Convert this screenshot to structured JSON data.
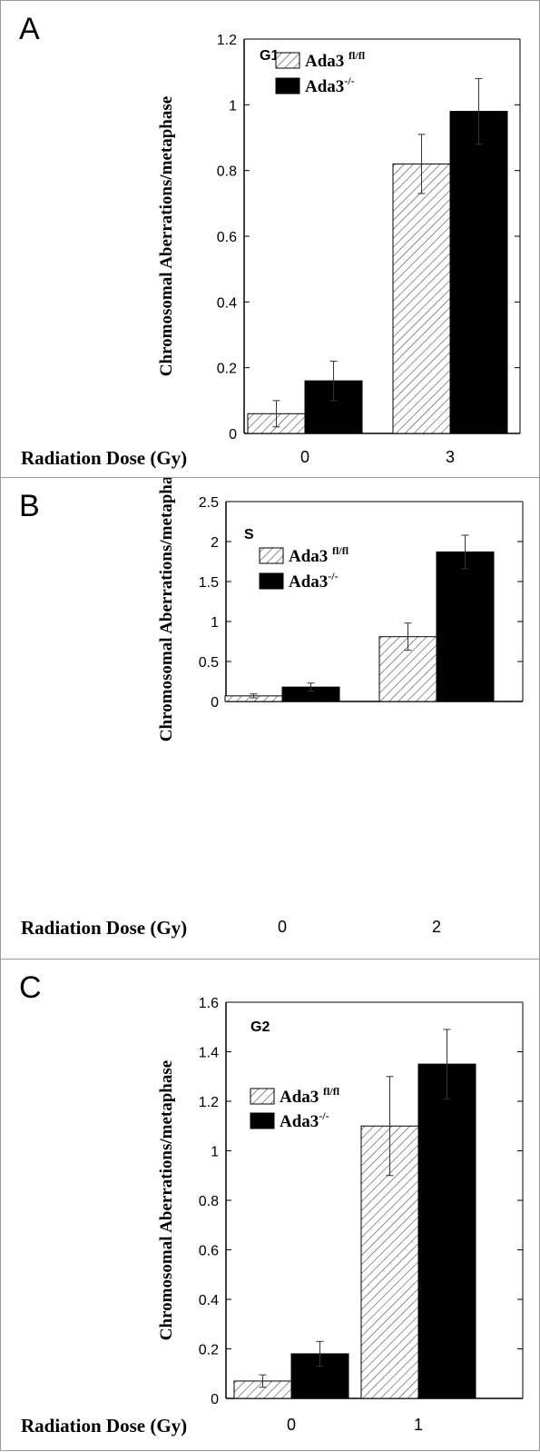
{
  "panels": [
    {
      "label": "A"
    },
    {
      "label": "B"
    },
    {
      "label": "C"
    }
  ],
  "chart_data": [
    {
      "type": "bar",
      "title": "G1",
      "ylabel": "Chromosomal  Aberrations/metaphase",
      "xlabel": "Radiation Dose (Gy)",
      "categories": [
        "0",
        "3"
      ],
      "ylim": [
        0,
        1.2
      ],
      "yticks": [
        0,
        0.2,
        0.4,
        0.6,
        0.8,
        1,
        1.2
      ],
      "ytick_labels": [
        "0",
        "0.2",
        "0.4",
        "0.6",
        "0.8",
        "1",
        "1.2"
      ],
      "legend_position": "top-left",
      "series": [
        {
          "name": "Ada3",
          "sup": "fl/fl",
          "pattern": "hatched",
          "values": [
            0.06,
            0.82
          ],
          "errors": [
            0.04,
            0.09
          ]
        },
        {
          "name": "Ada3",
          "sup": "-/-",
          "pattern": "solid",
          "values": [
            0.16,
            0.98
          ],
          "errors": [
            0.06,
            0.1
          ]
        }
      ]
    },
    {
      "type": "bar",
      "title": "S",
      "ylabel": "Chromosomal  Aberrations/metaphase",
      "xlabel": "Radiation Dose (Gy)",
      "categories": [
        "0",
        "2"
      ],
      "ylim": [
        0,
        2.5
      ],
      "yticks": [
        0,
        0.5,
        1,
        1.5,
        2,
        2.5
      ],
      "ytick_labels": [
        "0",
        "0.5",
        "1",
        "1.5",
        "2",
        "2.5"
      ],
      "legend_position": "top-left",
      "series": [
        {
          "name": "Ada3",
          "sup": "fl/fl",
          "pattern": "hatched",
          "values": [
            0.07,
            0.81
          ],
          "errors": [
            0.025,
            0.17
          ]
        },
        {
          "name": "Ada3",
          "sup": "-/-",
          "pattern": "solid",
          "values": [
            0.18,
            1.87
          ],
          "errors": [
            0.05,
            0.21
          ]
        }
      ]
    },
    {
      "type": "bar",
      "title": "G2",
      "ylabel": "Chromosomal  Aberrations/metaphase",
      "xlabel": "Radiation Dose (Gy)",
      "categories": [
        "0",
        "1"
      ],
      "ylim": [
        0,
        1.6
      ],
      "yticks": [
        0,
        0.2,
        0.4,
        0.6,
        0.8,
        1,
        1.2,
        1.4,
        1.6
      ],
      "ytick_labels": [
        "0",
        "0.2",
        "0.4",
        "0.6",
        "0.8",
        "1",
        "1.2",
        "1.4",
        "1.6"
      ],
      "legend_position": "top-left",
      "series": [
        {
          "name": "Ada3",
          "sup": "fl/fl",
          "pattern": "hatched",
          "values": [
            0.07,
            1.1
          ],
          "errors": [
            0.025,
            0.2
          ]
        },
        {
          "name": "Ada3",
          "sup": "-/-",
          "pattern": "solid",
          "values": [
            0.18,
            1.35
          ],
          "errors": [
            0.05,
            0.14
          ]
        }
      ]
    }
  ]
}
